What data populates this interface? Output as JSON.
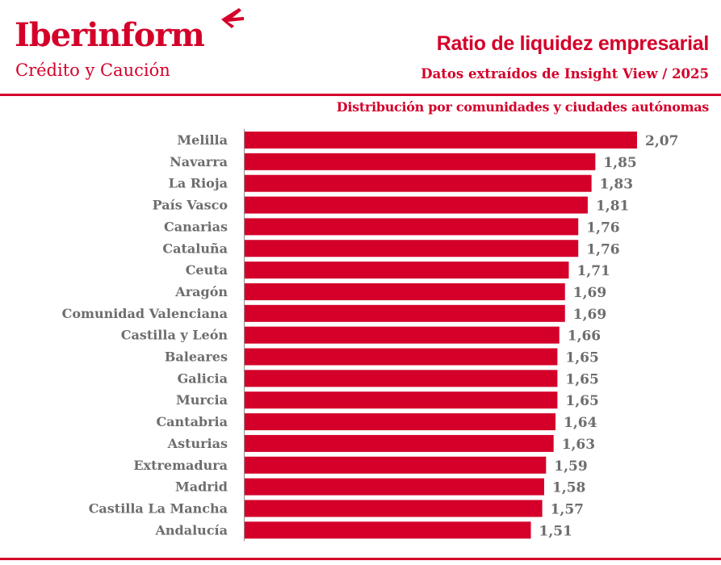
{
  "brand": {
    "name": "Iberinform",
    "tagline": "Crédito y Caución",
    "color": "#d4002a"
  },
  "header": {
    "title": "Ratio de liquidez empresarial",
    "subtitle": "Datos extraídos de Insight View / 2025"
  },
  "chart_data": {
    "type": "bar",
    "orientation": "horizontal",
    "title": "Distribución por comunidades y ciudades autónomas",
    "xlabel": "",
    "ylabel": "",
    "grid": false,
    "legend": "none",
    "bar_color": "#d4002a",
    "xlim": [
      0,
      2.07
    ],
    "categories": [
      "Melilla",
      "Navarra",
      "La Rioja",
      "País Vasco",
      "Canarias",
      "Cataluña",
      "Ceuta",
      "Aragón",
      "Comunidad Valenciana",
      "Castilla y León",
      "Baleares",
      "Galicia",
      "Murcia",
      "Cantabria",
      "Asturias",
      "Extremadura",
      "Madrid",
      "Castilla La Mancha",
      "Andalucía"
    ],
    "values": [
      2.07,
      1.85,
      1.83,
      1.81,
      1.76,
      1.76,
      1.71,
      1.69,
      1.69,
      1.66,
      1.65,
      1.65,
      1.65,
      1.64,
      1.63,
      1.59,
      1.58,
      1.57,
      1.51
    ],
    "value_labels": [
      "2,07",
      "1,85",
      "1,83",
      "1,81",
      "1,76",
      "1,76",
      "1,71",
      "1,69",
      "1,69",
      "1,66",
      "1,65",
      "1,65",
      "1,65",
      "1,64",
      "1,63",
      "1,59",
      "1,58",
      "1,57",
      "1,51"
    ]
  }
}
